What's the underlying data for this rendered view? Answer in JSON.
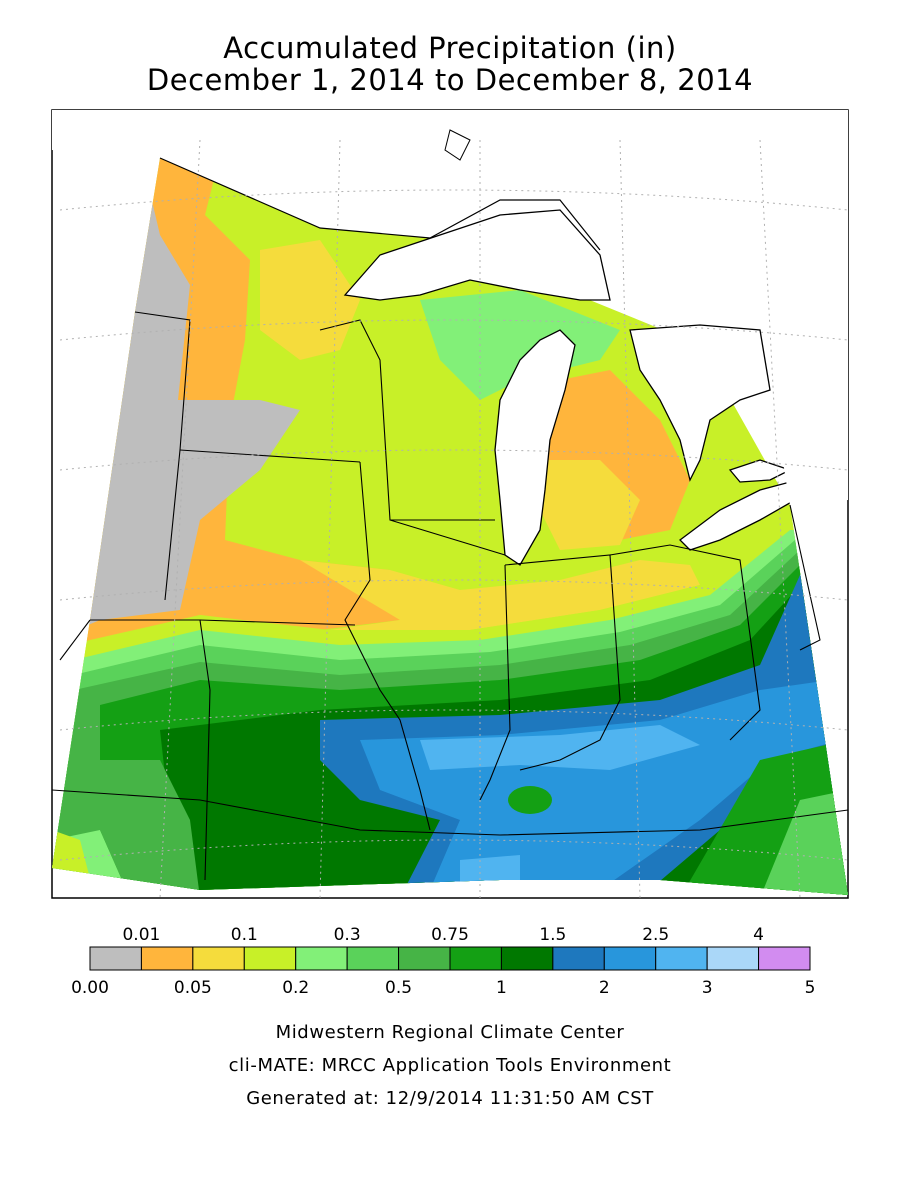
{
  "title_line1": "Accumulated Precipitation (in)",
  "title_line2": "December 1, 2014 to December 8, 2014",
  "legend": {
    "bins": [
      {
        "color": "#bebebe"
      },
      {
        "color": "#ffb53c"
      },
      {
        "color": "#f5dc3c"
      },
      {
        "color": "#c8f028"
      },
      {
        "color": "#82f078"
      },
      {
        "color": "#5ad25a"
      },
      {
        "color": "#46b446"
      },
      {
        "color": "#14a014"
      },
      {
        "color": "#007800"
      },
      {
        "color": "#1e78be"
      },
      {
        "color": "#2896dc"
      },
      {
        "color": "#50b4f0"
      },
      {
        "color": "#aad7f8"
      },
      {
        "color": "#d28cf0"
      }
    ],
    "upper_labels": [
      "0.01",
      "0.1",
      "0.3",
      "0.75",
      "1.5",
      "2.5",
      "4"
    ],
    "lower_labels": [
      "0.00",
      "0.05",
      "0.2",
      "0.5",
      "1",
      "2",
      "3",
      "5"
    ]
  },
  "credits": {
    "line1": "Midwestern Regional Climate Center",
    "line2": "cli-MATE: MRCC Application Tools Environment",
    "line3": "Generated at: 12/9/2014 11:31:50 AM CST"
  }
}
